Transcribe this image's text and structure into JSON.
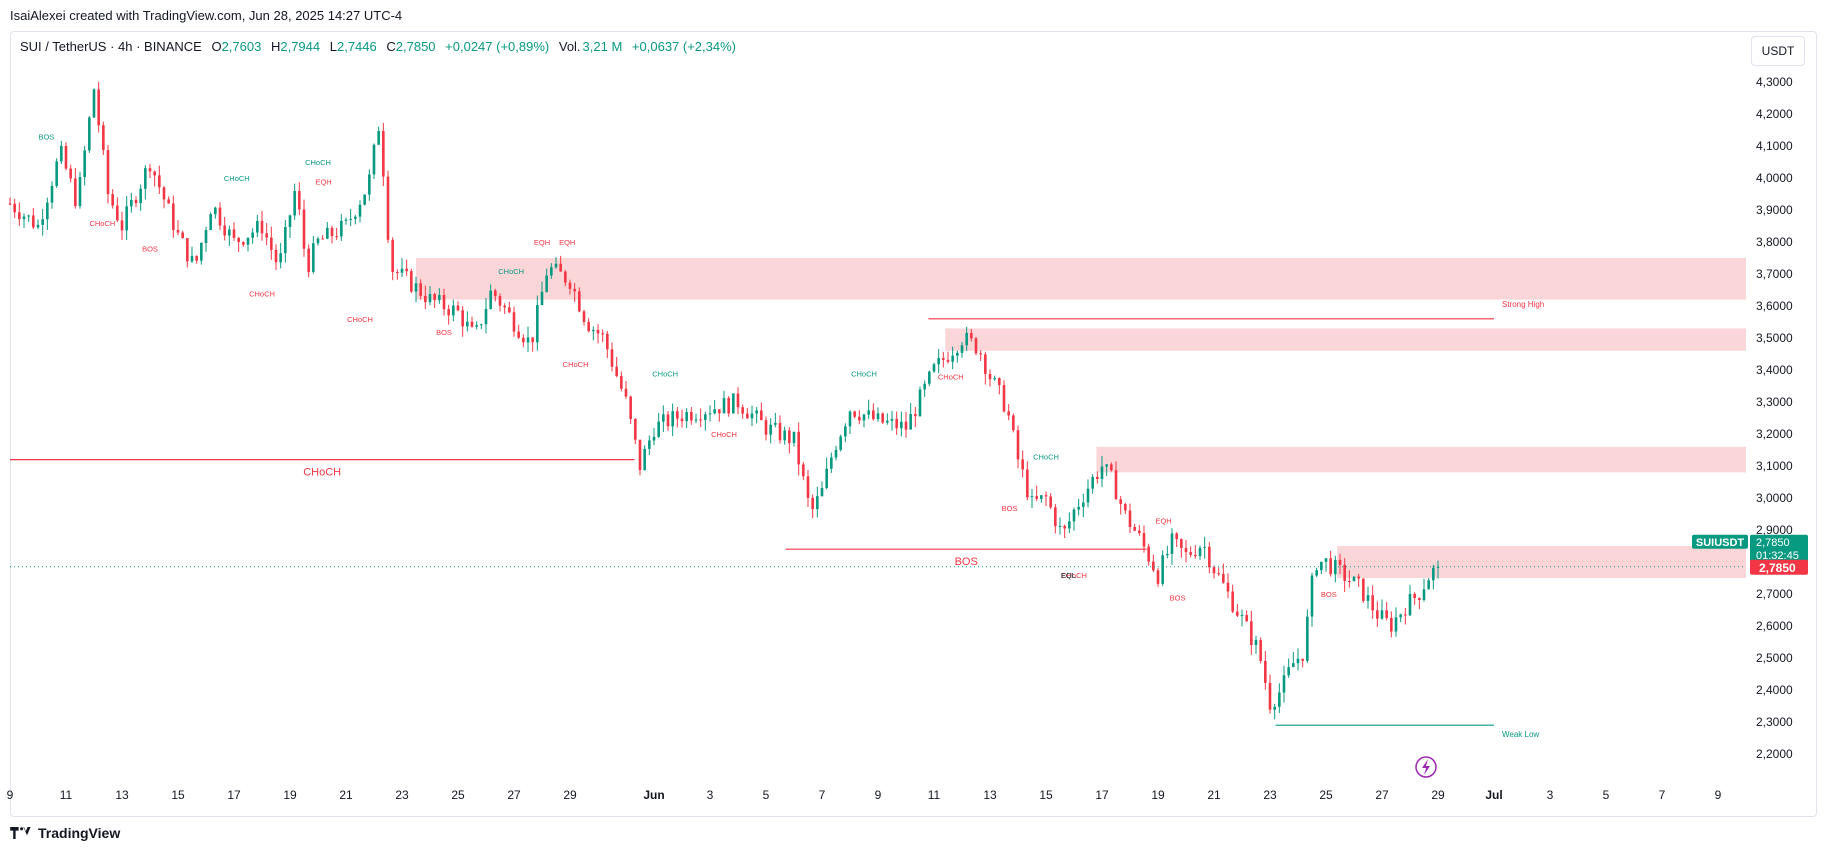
{
  "header": {
    "created_by": "IsaiAlexei created with TradingView.com, Jun 28, 2025 14:27 UTC-4"
  },
  "legend": {
    "symbol": "SUI / TetherUS · 4h · BINANCE",
    "open_label": "O",
    "open": "2,7603",
    "high_label": "H",
    "high": "2,7944",
    "low_label": "L",
    "low": "2,7446",
    "close_label": "C",
    "close": "2,7850",
    "change": "+0,0247 (+0,89%)",
    "vol_label": "Vol.",
    "vol": "3,21 M",
    "vol_change": "+0,0637 (+2,34%)"
  },
  "currency_button": "USDT",
  "footer": {
    "brand": "TradingView"
  },
  "colors": {
    "up": "#089981",
    "down": "#f23645",
    "zone": "#f8c8cc",
    "text": "#131722",
    "grid": "#e0e3eb",
    "dotted": "#089981"
  },
  "chart_data": {
    "type": "candlestick",
    "symbol": "SUIUSDT",
    "timeframe": "4h",
    "ylim": [
      2.15,
      4.35
    ],
    "y_ticks": [
      "4,3000",
      "4,2000",
      "4,1000",
      "4,0000",
      "3,9000",
      "3,8000",
      "3,7000",
      "3,6000",
      "3,5000",
      "3,4000",
      "3,3000",
      "3,2000",
      "3,1000",
      "3,0000",
      "2,9000",
      "2,8000",
      "2,7000",
      "2,6000",
      "2,5000",
      "2,4000",
      "2,3000",
      "2,2000"
    ],
    "x_range_days": [
      0,
      62
    ],
    "x_ticks": [
      {
        "label": "9",
        "day": 0
      },
      {
        "label": "11",
        "day": 2
      },
      {
        "label": "13",
        "day": 4
      },
      {
        "label": "15",
        "day": 6
      },
      {
        "label": "17",
        "day": 8
      },
      {
        "label": "19",
        "day": 10
      },
      {
        "label": "21",
        "day": 12
      },
      {
        "label": "23",
        "day": 14
      },
      {
        "label": "25",
        "day": 16
      },
      {
        "label": "27",
        "day": 18
      },
      {
        "label": "29",
        "day": 20
      },
      {
        "label": "Jun",
        "day": 23
      },
      {
        "label": "3",
        "day": 25
      },
      {
        "label": "5",
        "day": 27
      },
      {
        "label": "7",
        "day": 29
      },
      {
        "label": "9",
        "day": 31
      },
      {
        "label": "11",
        "day": 33
      },
      {
        "label": "13",
        "day": 35
      },
      {
        "label": "15",
        "day": 37
      },
      {
        "label": "17",
        "day": 39
      },
      {
        "label": "19",
        "day": 41
      },
      {
        "label": "21",
        "day": 43
      },
      {
        "label": "23",
        "day": 45
      },
      {
        "label": "25",
        "day": 47
      },
      {
        "label": "27",
        "day": 49
      },
      {
        "label": "29",
        "day": 51
      },
      {
        "label": "Jul",
        "day": 53
      },
      {
        "label": "3",
        "day": 55
      },
      {
        "label": "5",
        "day": 57
      },
      {
        "label": "7",
        "day": 59
      },
      {
        "label": "9",
        "day": 61
      }
    ],
    "path_points": [
      [
        0,
        3.92
      ],
      [
        1,
        3.85
      ],
      [
        1.8,
        4.08
      ],
      [
        2.4,
        3.92
      ],
      [
        3,
        4.28
      ],
      [
        3.5,
        3.95
      ],
      [
        4,
        3.85
      ],
      [
        5,
        4.05
      ],
      [
        6,
        3.82
      ],
      [
        6.6,
        3.72
      ],
      [
        7.2,
        3.92
      ],
      [
        8,
        3.8
      ],
      [
        9,
        3.85
      ],
      [
        9.6,
        3.72
      ],
      [
        10.2,
        3.97
      ],
      [
        10.6,
        3.72
      ],
      [
        11,
        3.8
      ],
      [
        12,
        3.85
      ],
      [
        12.8,
        3.98
      ],
      [
        13.2,
        4.18
      ],
      [
        13.6,
        3.72
      ],
      [
        14.2,
        3.68
      ],
      [
        15,
        3.62
      ],
      [
        16,
        3.58
      ],
      [
        16.6,
        3.5
      ],
      [
        17.2,
        3.65
      ],
      [
        18,
        3.55
      ],
      [
        18.6,
        3.48
      ],
      [
        19.2,
        3.72
      ],
      [
        20,
        3.68
      ],
      [
        20.6,
        3.55
      ],
      [
        21.2,
        3.5
      ],
      [
        21.6,
        3.4
      ],
      [
        22,
        3.3
      ],
      [
        22.5,
        3.1
      ],
      [
        23,
        3.22
      ],
      [
        24,
        3.26
      ],
      [
        25,
        3.28
      ],
      [
        26,
        3.3
      ],
      [
        27,
        3.22
      ],
      [
        28,
        3.18
      ],
      [
        28.6,
        2.95
      ],
      [
        29,
        3.02
      ],
      [
        29.4,
        3.15
      ],
      [
        30,
        3.28
      ],
      [
        31,
        3.24
      ],
      [
        32,
        3.22
      ],
      [
        33,
        3.4
      ],
      [
        34,
        3.5
      ],
      [
        34.6,
        3.47
      ],
      [
        35,
        3.38
      ],
      [
        35.6,
        3.28
      ],
      [
        36,
        3.12
      ],
      [
        36.5,
        2.98
      ],
      [
        37,
        3.0
      ],
      [
        37.6,
        2.88
      ],
      [
        38,
        2.96
      ],
      [
        38.6,
        3.05
      ],
      [
        39,
        3.1
      ],
      [
        39.4,
        3.05
      ],
      [
        39.8,
        2.95
      ],
      [
        40.3,
        2.88
      ],
      [
        41,
        2.76
      ],
      [
        41.5,
        2.86
      ],
      [
        42,
        2.82
      ],
      [
        42.6,
        2.86
      ],
      [
        43,
        2.78
      ],
      [
        43.5,
        2.7
      ],
      [
        44,
        2.62
      ],
      [
        44.6,
        2.52
      ],
      [
        45,
        2.36
      ],
      [
        45.4,
        2.4
      ],
      [
        45.8,
        2.48
      ],
      [
        46.2,
        2.52
      ],
      [
        46.6,
        2.8
      ],
      [
        47,
        2.8
      ],
      [
        47.6,
        2.76
      ],
      [
        48.2,
        2.72
      ],
      [
        48.8,
        2.64
      ],
      [
        49.3,
        2.6
      ],
      [
        49.8,
        2.66
      ],
      [
        50.3,
        2.7
      ],
      [
        50.7,
        2.76
      ],
      [
        51.0,
        2.785
      ]
    ],
    "last_price": "2,7850",
    "price_label": {
      "symbol": "SUIUSDT",
      "price": "2,7850",
      "countdown": "01:32:45"
    },
    "supply_zones": [
      {
        "y1": 3.62,
        "y2": 3.75,
        "x1": 14.5,
        "x2": 62
      },
      {
        "y1": 3.46,
        "y2": 3.53,
        "x1": 33.4,
        "x2": 62
      },
      {
        "y1": 3.08,
        "y2": 3.16,
        "x1": 38.8,
        "x2": 62
      },
      {
        "y1": 2.75,
        "y2": 2.85,
        "x1": 47.4,
        "x2": 62
      }
    ],
    "levels": [
      {
        "label": "CHoCH",
        "value": 3.12,
        "x1": 0,
        "x2": 22.3,
        "color": "down"
      },
      {
        "label": "BOS",
        "value": 2.84,
        "x1": 27.7,
        "x2": 40.6,
        "color": "down"
      },
      {
        "label": "Strong High",
        "value": 3.56,
        "x1": 32.8,
        "x2": 53,
        "color": "down"
      },
      {
        "label": "Weak Low",
        "value": 2.29,
        "x1": 45.2,
        "x2": 53,
        "color": "up"
      }
    ],
    "annotations": [
      {
        "text": "BOS",
        "day": 1.3,
        "price": 4.12,
        "color": "up"
      },
      {
        "text": "CHoCH",
        "day": 3.3,
        "price": 3.85,
        "color": "down"
      },
      {
        "text": "BOS",
        "day": 5.0,
        "price": 3.77,
        "color": "down"
      },
      {
        "text": "CHoCH",
        "day": 8.1,
        "price": 3.99,
        "color": "up"
      },
      {
        "text": "CHoCH",
        "day": 9.0,
        "price": 3.63,
        "color": "down"
      },
      {
        "text": "CHoCH",
        "day": 11.0,
        "price": 4.04,
        "color": "up"
      },
      {
        "text": "EQH",
        "day": 11.2,
        "price": 3.98,
        "color": "down"
      },
      {
        "text": "CHoCH",
        "day": 12.5,
        "price": 3.55,
        "color": "down"
      },
      {
        "text": "BOS",
        "day": 15.5,
        "price": 3.51,
        "color": "down"
      },
      {
        "text": "EQH",
        "day": 19.0,
        "price": 3.79,
        "color": "down"
      },
      {
        "text": "EQH",
        "day": 19.9,
        "price": 3.79,
        "color": "down"
      },
      {
        "text": "CHoCH",
        "day": 17.9,
        "price": 3.7,
        "color": "up"
      },
      {
        "text": "CHoCH",
        "day": 20.2,
        "price": 3.41,
        "color": "down"
      },
      {
        "text": "CHoCH",
        "day": 23.4,
        "price": 3.38,
        "color": "up"
      },
      {
        "text": "CHoCH",
        "day": 25.5,
        "price": 3.19,
        "color": "down"
      },
      {
        "text": "CHoCH",
        "day": 30.5,
        "price": 3.38,
        "color": "up"
      },
      {
        "text": "CHoCH",
        "day": 33.6,
        "price": 3.37,
        "color": "down"
      },
      {
        "text": "CHoCH",
        "day": 37.0,
        "price": 3.12,
        "color": "up"
      },
      {
        "text": "BOS",
        "day": 35.7,
        "price": 2.96,
        "color": "down"
      },
      {
        "text": "CHoCH",
        "day": 38.0,
        "price": 2.75,
        "color": "down"
      },
      {
        "text": "EQL",
        "day": 37.8,
        "price": 2.75,
        "color": "text"
      },
      {
        "text": "EQH",
        "day": 41.2,
        "price": 2.92,
        "color": "down"
      },
      {
        "text": "BOS",
        "day": 41.7,
        "price": 2.68,
        "color": "down"
      },
      {
        "text": "BOS",
        "day": 47.1,
        "price": 2.69,
        "color": "down"
      }
    ]
  }
}
